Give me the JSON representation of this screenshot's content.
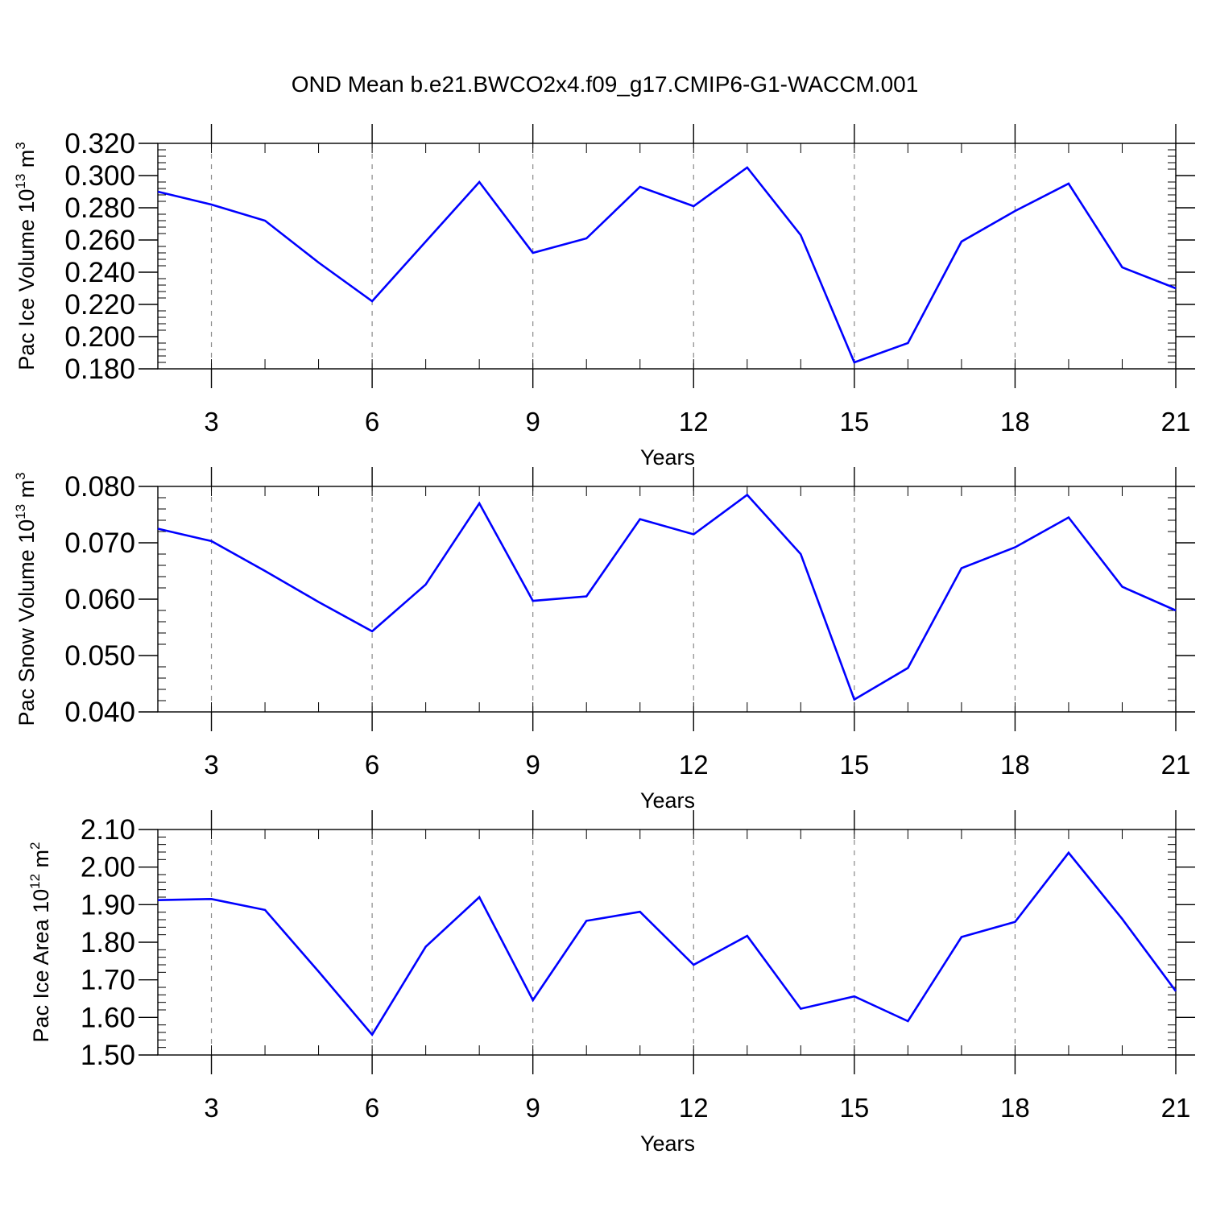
{
  "title": "OND Mean b.e21.BWCO2x4.f09_g17.CMIP6-G1-WACCM.001",
  "colors": {
    "series": "#0000ff",
    "axis": "#000000",
    "grid": "#8a8a8a"
  },
  "chart_data": [
    {
      "type": "line",
      "xlabel": "Years",
      "ylabel": {
        "text": "Pac Ice Volume 10",
        "exp": "13",
        "unit": " m",
        "unit_exp": "3"
      },
      "x": [
        2,
        3,
        4,
        5,
        6,
        7,
        8,
        9,
        10,
        11,
        12,
        13,
        14,
        15,
        16,
        17,
        18,
        19,
        20,
        21
      ],
      "values": [
        0.29,
        0.282,
        0.272,
        0.246,
        0.222,
        0.259,
        0.296,
        0.252,
        0.261,
        0.293,
        0.281,
        0.305,
        0.263,
        0.184,
        0.196,
        0.259,
        0.278,
        0.295,
        0.243,
        0.23
      ],
      "xlim": [
        2,
        21
      ],
      "ylim": [
        0.18,
        0.32
      ],
      "yticks": [
        "0.180",
        "0.200",
        "0.220",
        "0.240",
        "0.260",
        "0.280",
        "0.300",
        "0.320"
      ],
      "xticks": [
        "3",
        "6",
        "9",
        "12",
        "15",
        "18",
        "21"
      ],
      "grid": "vertical dashed at major x ticks"
    },
    {
      "type": "line",
      "xlabel": "Years",
      "ylabel": {
        "text": "Pac Snow Volume 10",
        "exp": "13",
        "unit": " m",
        "unit_exp": "3"
      },
      "x": [
        2,
        3,
        4,
        5,
        6,
        7,
        8,
        9,
        10,
        11,
        12,
        13,
        14,
        15,
        16,
        17,
        18,
        19,
        20,
        21
      ],
      "values": [
        0.0725,
        0.0703,
        0.065,
        0.0595,
        0.0543,
        0.0626,
        0.077,
        0.0597,
        0.0605,
        0.0742,
        0.0715,
        0.0785,
        0.068,
        0.0422,
        0.0478,
        0.0655,
        0.0692,
        0.0745,
        0.0622,
        0.058
      ],
      "xlim": [
        2,
        21
      ],
      "ylim": [
        0.04,
        0.08
      ],
      "yticks": [
        "0.040",
        "0.050",
        "0.060",
        "0.070",
        "0.080"
      ],
      "xticks": [
        "3",
        "6",
        "9",
        "12",
        "15",
        "18",
        "21"
      ],
      "grid": "vertical dashed at major x ticks"
    },
    {
      "type": "line",
      "xlabel": "Years",
      "ylabel": {
        "text": "Pac Ice Area 10",
        "exp": "12",
        "unit": " m",
        "unit_exp": "2"
      },
      "x": [
        2,
        3,
        4,
        5,
        6,
        7,
        8,
        9,
        10,
        11,
        12,
        13,
        14,
        15,
        16,
        17,
        18,
        19,
        20,
        21
      ],
      "values": [
        1.912,
        1.915,
        1.886,
        1.722,
        1.554,
        1.788,
        1.92,
        1.646,
        1.857,
        1.881,
        1.74,
        1.817,
        1.623,
        1.656,
        1.59,
        1.814,
        1.854,
        2.038,
        1.862,
        1.67
      ],
      "xlim": [
        2,
        21
      ],
      "ylim": [
        1.5,
        2.1
      ],
      "yticks": [
        "1.50",
        "1.60",
        "1.70",
        "1.80",
        "1.90",
        "2.00",
        "2.10"
      ],
      "xticks": [
        "3",
        "6",
        "9",
        "12",
        "15",
        "18",
        "21"
      ],
      "grid": "vertical dashed at major x ticks"
    }
  ]
}
